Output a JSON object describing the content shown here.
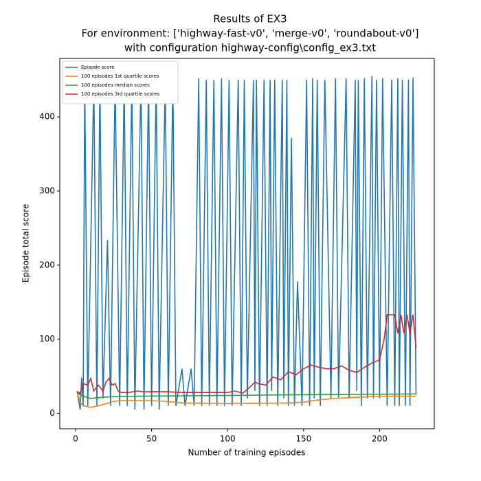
{
  "chart_data": {
    "type": "line",
    "title": [
      "Results of EX3",
      "For environment: ['highway-fast-v0', 'merge-v0', 'roundabout-v0']",
      "with configuration highway-config\\config_ex3.txt"
    ],
    "x_label": "Number of training episodes",
    "y_label": "Episode total score",
    "xlim": [
      -10.4,
      236
    ],
    "ylim": [
      -21,
      479
    ],
    "xticks": [
      0,
      50,
      100,
      150,
      200
    ],
    "yticks": [
      0,
      100,
      200,
      300,
      400
    ],
    "legend": "upper left",
    "series": [
      {
        "name": "Episode score",
        "color": "#1f77b4",
        "x": [
          1,
          3,
          4,
          5,
          6,
          8,
          12,
          14,
          16,
          18,
          21,
          23,
          26,
          29,
          32,
          34,
          37,
          39,
          43,
          45,
          48,
          50,
          53,
          55,
          59,
          61,
          64,
          66,
          70,
          72,
          76,
          78,
          81,
          83,
          86,
          88,
          91,
          93,
          96,
          98,
          101,
          103,
          107,
          109,
          111,
          113,
          117,
          118,
          119,
          121,
          124,
          126,
          128,
          129,
          131,
          133,
          136,
          137,
          139,
          140,
          142,
          144,
          146,
          149,
          152,
          154,
          156,
          157,
          159,
          161,
          164,
          168,
          171,
          173,
          178,
          180,
          184,
          185,
          186,
          188,
          190,
          192,
          195,
          196,
          198,
          200,
          202,
          205,
          208,
          210,
          212,
          213,
          215,
          217,
          219,
          220,
          222,
          224
        ],
        "values": [
          30,
          5,
          48,
          10,
          450,
          10,
          450,
          10,
          450,
          20,
          234,
          10,
          450,
          10,
          450,
          10,
          450,
          5,
          450,
          5,
          450,
          10,
          450,
          5,
          450,
          10,
          450,
          10,
          60,
          10,
          60,
          10,
          452,
          10,
          450,
          10,
          450,
          10,
          452,
          10,
          450,
          10,
          450,
          10,
          450,
          20,
          450,
          30,
          450,
          10,
          450,
          10,
          450,
          30,
          450,
          10,
          450,
          20,
          450,
          10,
          372,
          10,
          178,
          10,
          450,
          10,
          452,
          20,
          450,
          10,
          450,
          20,
          452,
          20,
          452,
          20,
          450,
          30,
          450,
          10,
          452,
          20,
          455,
          20,
          450,
          20,
          452,
          10,
          450,
          10,
          452,
          10,
          450,
          10,
          450,
          10,
          453,
          25
        ]
      },
      {
        "name": "100 episodes 1st quartile scores",
        "color": "#ff7f0e",
        "x": [
          1,
          3,
          5,
          10,
          15,
          20,
          25,
          30,
          50,
          60,
          70,
          100,
          140,
          150,
          160,
          170,
          200,
          224
        ],
        "values": [
          29,
          15,
          10,
          8,
          10,
          13,
          16,
          17,
          17,
          16,
          14,
          13,
          14,
          15,
          18,
          20,
          23,
          23
        ]
      },
      {
        "name": "100 episodes median scores",
        "color": "#2ca02c",
        "x": [
          1,
          3,
          5,
          10,
          20,
          40,
          100,
          150,
          224
        ],
        "values": [
          28,
          25,
          23,
          20,
          22,
          23,
          24,
          25,
          26
        ]
      },
      {
        "name": "100 episodes 3rd quartile scores",
        "color": "#d62728",
        "x": [
          1,
          3,
          5,
          8,
          10,
          12,
          15,
          18,
          20,
          22,
          24,
          26,
          28,
          30,
          35,
          40,
          45,
          60,
          70,
          100,
          105,
          110,
          115,
          118,
          120,
          125,
          130,
          135,
          140,
          145,
          150,
          155,
          160,
          165,
          170,
          175,
          180,
          185,
          190,
          195,
          200,
          203,
          205,
          210,
          212,
          214,
          216,
          218,
          220,
          222,
          224
        ],
        "values": [
          29,
          27,
          40,
          38,
          47,
          30,
          38,
          30,
          42,
          47,
          38,
          40,
          30,
          28,
          28,
          30,
          29,
          29,
          28,
          28,
          30,
          27,
          36,
          42,
          40,
          38,
          49,
          45,
          56,
          52,
          60,
          65,
          62,
          60,
          60,
          64,
          58,
          55,
          62,
          68,
          72,
          100,
          133,
          133,
          108,
          133,
          108,
          133,
          108,
          133,
          88
        ]
      }
    ]
  }
}
